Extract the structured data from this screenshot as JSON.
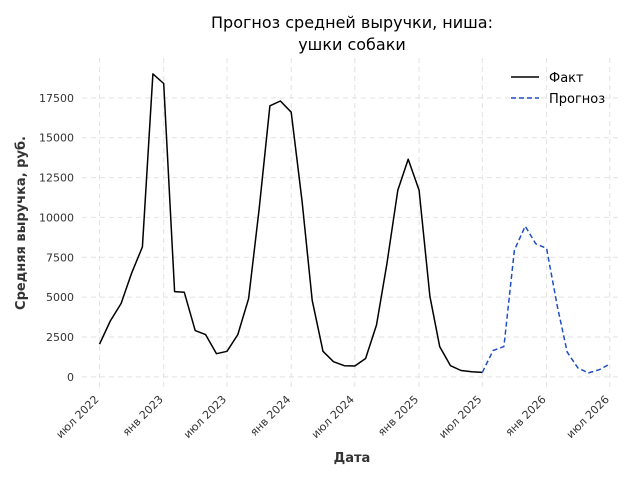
{
  "chart_data": {
    "type": "line",
    "title_lines": [
      "Прогноз средней выручки, ниша:",
      "ушки собаки"
    ],
    "xlabel": "Дата",
    "ylabel": "Средняя выручка, руб.",
    "x_ticks": [
      "июл 2022",
      "янв 2023",
      "июл 2023",
      "янв 2024",
      "июл 2024",
      "янв 2025",
      "июл 2025",
      "янв 2026",
      "июл 2026"
    ],
    "y_ticks": [
      0,
      2500,
      5000,
      7500,
      10000,
      12500,
      15000,
      17500
    ],
    "ylim": [
      -700,
      20000
    ],
    "xlim": [
      "2022-05-12",
      "2026-08-05"
    ],
    "grid": true,
    "legend_position": "top-right",
    "series": [
      {
        "name": "Факт",
        "color": "#000000",
        "dash": "solid",
        "points": [
          [
            "2022-07-01",
            2050
          ],
          [
            "2022-08-01",
            3500
          ],
          [
            "2022-09-01",
            4600
          ],
          [
            "2022-10-01",
            6500
          ],
          [
            "2022-11-01",
            8150
          ],
          [
            "2022-12-01",
            19000
          ],
          [
            "2023-01-01",
            18400
          ],
          [
            "2023-02-01",
            5350
          ],
          [
            "2023-03-01",
            5300
          ],
          [
            "2023-04-01",
            2900
          ],
          [
            "2023-05-01",
            2650
          ],
          [
            "2023-06-01",
            1450
          ],
          [
            "2023-07-01",
            1600
          ],
          [
            "2023-08-01",
            2650
          ],
          [
            "2023-09-01",
            4900
          ],
          [
            "2023-10-01",
            10500
          ],
          [
            "2023-11-01",
            17000
          ],
          [
            "2023-12-01",
            17300
          ],
          [
            "2024-01-01",
            16600
          ],
          [
            "2024-02-01",
            11000
          ],
          [
            "2024-03-01",
            4800
          ],
          [
            "2024-04-01",
            1600
          ],
          [
            "2024-05-01",
            950
          ],
          [
            "2024-06-01",
            700
          ],
          [
            "2024-07-01",
            680
          ],
          [
            "2024-08-01",
            1150
          ],
          [
            "2024-09-01",
            3250
          ],
          [
            "2024-10-01",
            7100
          ],
          [
            "2024-11-01",
            11700
          ],
          [
            "2024-12-01",
            13650
          ],
          [
            "2025-01-01",
            11700
          ],
          [
            "2025-02-01",
            5050
          ],
          [
            "2025-03-01",
            1900
          ],
          [
            "2025-04-01",
            700
          ],
          [
            "2025-05-01",
            400
          ],
          [
            "2025-06-01",
            320
          ],
          [
            "2025-07-01",
            280
          ]
        ]
      },
      {
        "name": "Прогноз",
        "color": "#1f4fc4",
        "dash": "dashed",
        "points": [
          [
            "2025-07-01",
            280
          ],
          [
            "2025-08-01",
            1650
          ],
          [
            "2025-09-01",
            1900
          ],
          [
            "2025-10-01",
            7950
          ],
          [
            "2025-11-01",
            9450
          ],
          [
            "2025-12-01",
            8350
          ],
          [
            "2026-01-01",
            8050
          ],
          [
            "2026-02-01",
            4400
          ],
          [
            "2026-03-01",
            1550
          ],
          [
            "2026-04-01",
            550
          ],
          [
            "2026-05-01",
            250
          ],
          [
            "2026-06-01",
            450
          ],
          [
            "2026-07-01",
            800
          ]
        ]
      }
    ]
  }
}
